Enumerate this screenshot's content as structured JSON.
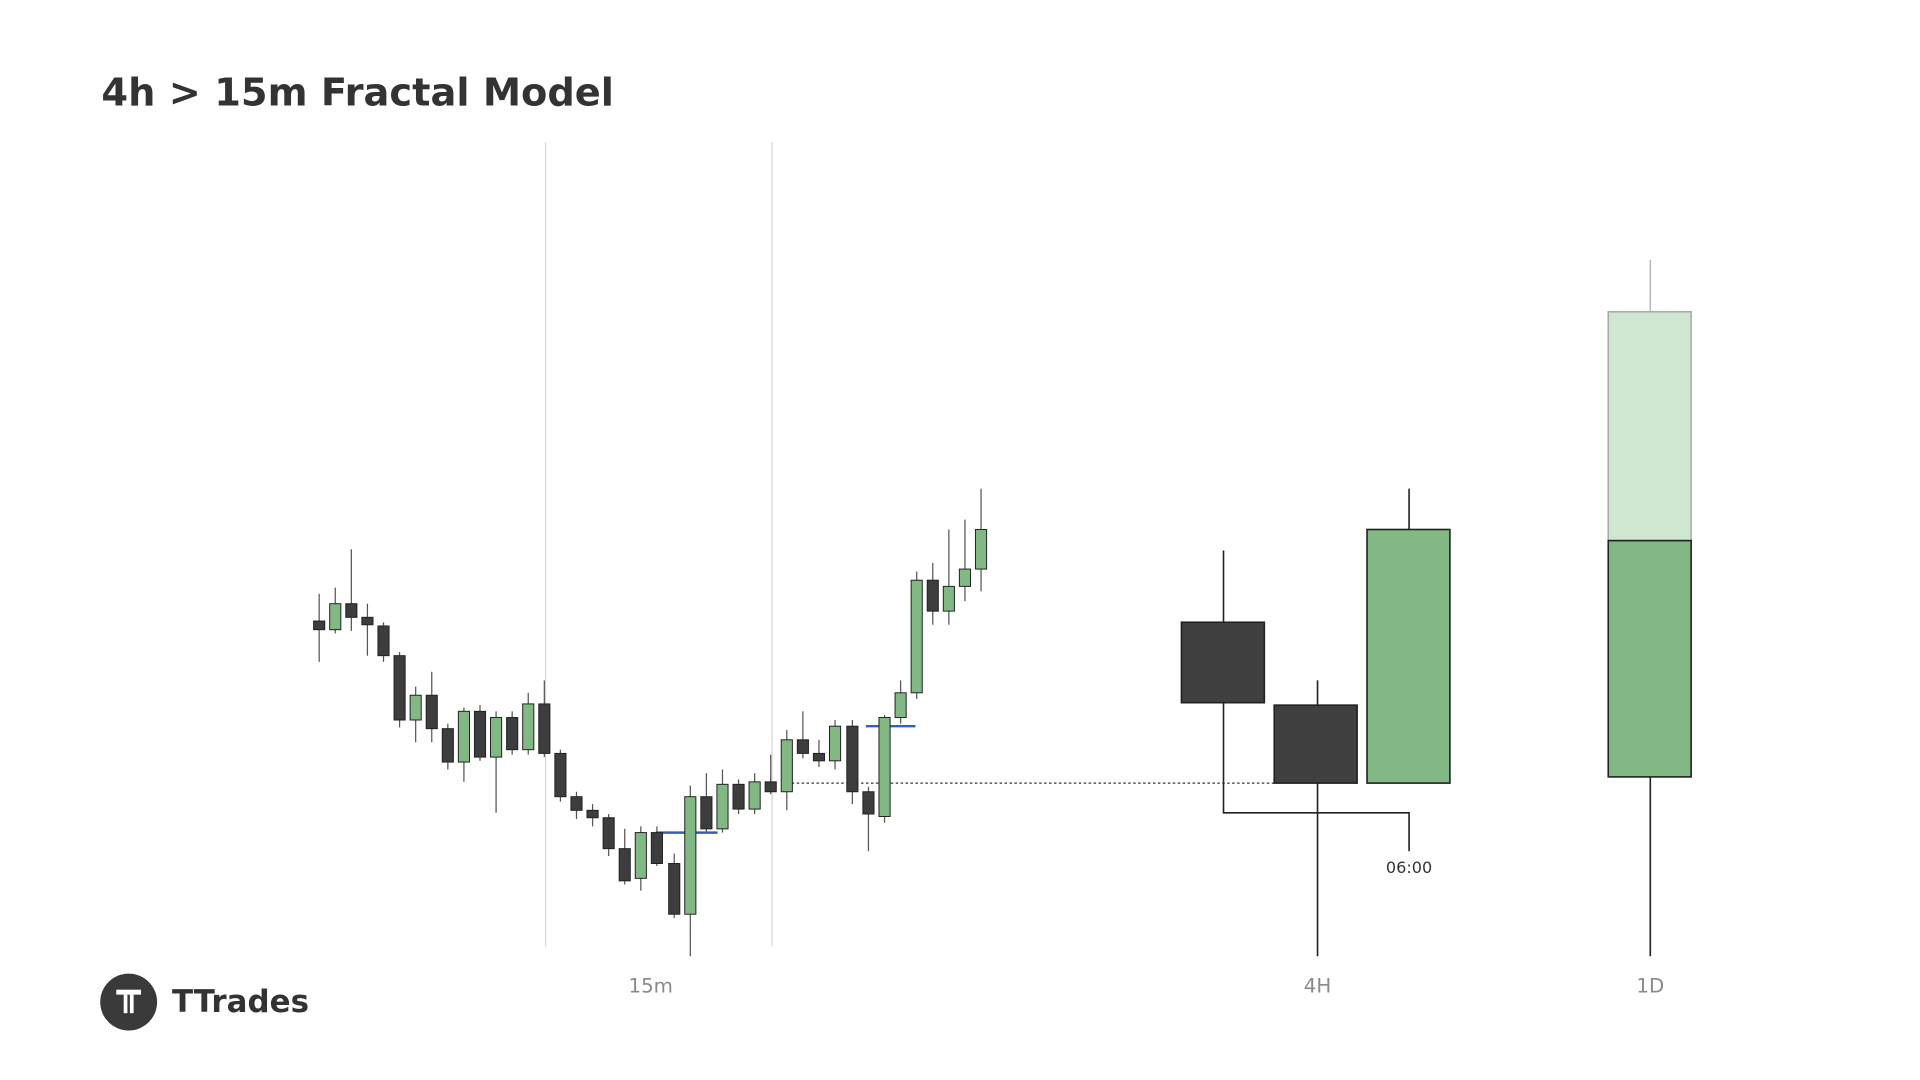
{
  "header": {
    "title": "4h > 15m Fractal Model"
  },
  "labels": {
    "timeframe_15m": "15m",
    "timeframe_4h": "4H",
    "timeframe_1d": "1D",
    "time_marker": "06:00"
  },
  "brand": {
    "name": "TTrades"
  }
}
